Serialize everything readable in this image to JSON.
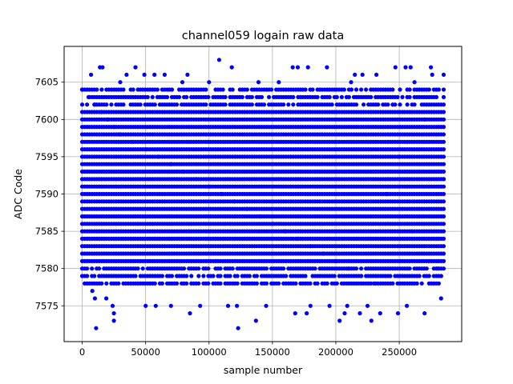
{
  "chart_data": {
    "type": "scatter",
    "title": "channel059 logain raw data",
    "xlabel": "sample number",
    "ylabel": "ADC Code",
    "xlim": [
      -14250,
      299250
    ],
    "ylim": [
      7570.2,
      7609.8
    ],
    "xticks": [
      0,
      50000,
      100000,
      150000,
      200000,
      250000
    ],
    "xtick_labels": [
      "0",
      "50000",
      "100000",
      "150000",
      "200000",
      "250000"
    ],
    "yticks": [
      7575,
      7580,
      7585,
      7590,
      7595,
      7600,
      7605
    ],
    "ytick_labels": [
      "7575",
      "7580",
      "7585",
      "7590",
      "7595",
      "7600",
      "7605"
    ],
    "grid": true,
    "marker_color": "#0000ff",
    "x_range": [
      0,
      285000
    ],
    "dense_band": {
      "x": [
        0,
        285000
      ],
      "y": [
        7578,
        7604
      ]
    },
    "series": [
      {
        "x": [
          0,
          5000,
          10000,
          15000,
          20000,
          25000,
          30000,
          40000,
          50000,
          60000,
          70000,
          80000,
          90000,
          100000,
          110000,
          120000,
          130000,
          140000,
          150000,
          160000,
          170000,
          180000,
          190000,
          200000,
          210000,
          220000,
          230000,
          240000,
          250000,
          260000,
          270000,
          280000,
          285000
        ],
        "y": [
          7604,
          7603,
          7602,
          7601,
          7600,
          7599,
          7598,
          7597,
          7596,
          7595,
          7594,
          7593,
          7592,
          7591,
          7590,
          7589,
          7588,
          7587,
          7586,
          7585,
          7584,
          7583,
          7582,
          7581,
          7580,
          7579,
          7578,
          7590,
          7595,
          7585,
          7600,
          7580,
          7592
        ]
      }
    ],
    "outliers": [
      {
        "x": 11000,
        "y": 7572
      },
      {
        "x": 14000,
        "y": 7607
      },
      {
        "x": 16000,
        "y": 7607
      },
      {
        "x": 7000,
        "y": 7606
      },
      {
        "x": 25000,
        "y": 7574
      },
      {
        "x": 25000,
        "y": 7573
      },
      {
        "x": 24000,
        "y": 7575
      },
      {
        "x": 8000,
        "y": 7577
      },
      {
        "x": 10000,
        "y": 7576
      },
      {
        "x": 19000,
        "y": 7576
      },
      {
        "x": 35000,
        "y": 7606
      },
      {
        "x": 42000,
        "y": 7607
      },
      {
        "x": 30000,
        "y": 7605
      },
      {
        "x": 50000,
        "y": 7575
      },
      {
        "x": 49000,
        "y": 7606
      },
      {
        "x": 57000,
        "y": 7606
      },
      {
        "x": 58000,
        "y": 7575
      },
      {
        "x": 65000,
        "y": 7606
      },
      {
        "x": 70000,
        "y": 7575
      },
      {
        "x": 79000,
        "y": 7605
      },
      {
        "x": 85000,
        "y": 7574
      },
      {
        "x": 83000,
        "y": 7606
      },
      {
        "x": 93000,
        "y": 7575
      },
      {
        "x": 100000,
        "y": 7605
      },
      {
        "x": 108000,
        "y": 7608
      },
      {
        "x": 115000,
        "y": 7575
      },
      {
        "x": 118000,
        "y": 7607
      },
      {
        "x": 122000,
        "y": 7575
      },
      {
        "x": 123000,
        "y": 7572
      },
      {
        "x": 137000,
        "y": 7573
      },
      {
        "x": 139000,
        "y": 7605
      },
      {
        "x": 145000,
        "y": 7575
      },
      {
        "x": 155000,
        "y": 7605
      },
      {
        "x": 166000,
        "y": 7607
      },
      {
        "x": 170000,
        "y": 7607
      },
      {
        "x": 168000,
        "y": 7574
      },
      {
        "x": 177000,
        "y": 7574
      },
      {
        "x": 178000,
        "y": 7607
      },
      {
        "x": 180000,
        "y": 7575
      },
      {
        "x": 193000,
        "y": 7607
      },
      {
        "x": 195000,
        "y": 7575
      },
      {
        "x": 203000,
        "y": 7573
      },
      {
        "x": 207000,
        "y": 7574
      },
      {
        "x": 209000,
        "y": 7575
      },
      {
        "x": 212000,
        "y": 7605
      },
      {
        "x": 215000,
        "y": 7606
      },
      {
        "x": 219000,
        "y": 7574
      },
      {
        "x": 221000,
        "y": 7606
      },
      {
        "x": 225000,
        "y": 7575
      },
      {
        "x": 228000,
        "y": 7573
      },
      {
        "x": 232000,
        "y": 7606
      },
      {
        "x": 235000,
        "y": 7574
      },
      {
        "x": 247000,
        "y": 7607
      },
      {
        "x": 249000,
        "y": 7574
      },
      {
        "x": 255000,
        "y": 7607
      },
      {
        "x": 259000,
        "y": 7607
      },
      {
        "x": 256000,
        "y": 7575
      },
      {
        "x": 262000,
        "y": 7605
      },
      {
        "x": 270000,
        "y": 7574
      },
      {
        "x": 275000,
        "y": 7607
      },
      {
        "x": 276000,
        "y": 7606
      },
      {
        "x": 283000,
        "y": 7576
      },
      {
        "x": 285000,
        "y": 7606
      }
    ]
  }
}
